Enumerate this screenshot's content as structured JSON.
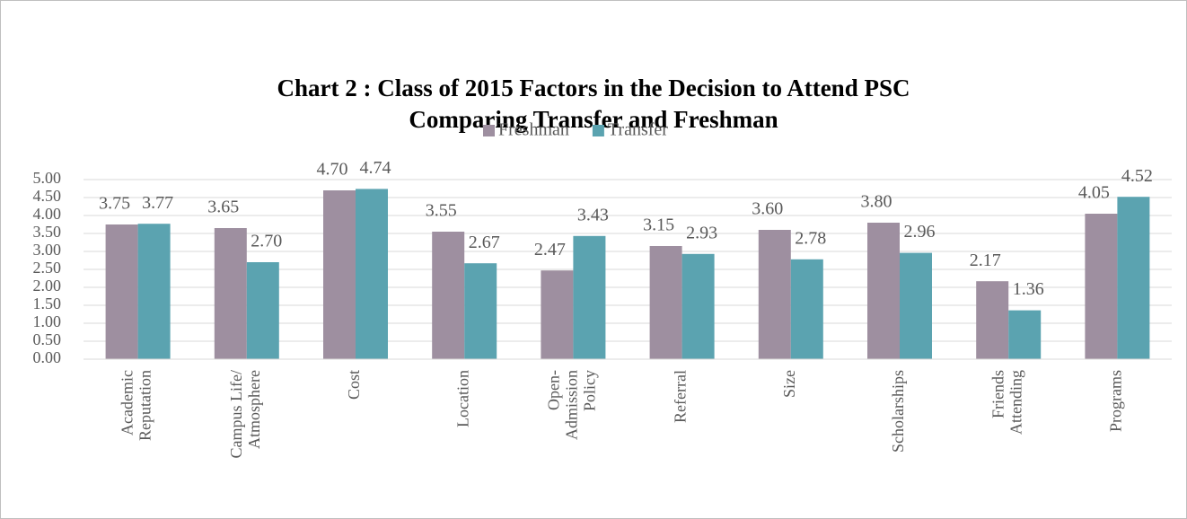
{
  "chart_data": {
    "type": "bar",
    "title": [
      "Chart 2 : Class of 2015 Factors in the Decision to Attend PSC",
      "Comparing Transfer and Freshman"
    ],
    "categories": [
      [
        "Academic",
        "Reputation"
      ],
      [
        "Campus Life/",
        "Atmosphere"
      ],
      [
        "Cost"
      ],
      [
        "Location"
      ],
      [
        "Open-",
        "Admission",
        "Policy"
      ],
      [
        "Referral"
      ],
      [
        "Size"
      ],
      [
        "Scholarships"
      ],
      [
        "Friends",
        "Attending"
      ],
      [
        "Programs"
      ]
    ],
    "series": [
      {
        "name": "Freshman",
        "color": "#9e8fa0",
        "values": [
          3.75,
          3.65,
          4.7,
          3.55,
          2.47,
          3.15,
          3.6,
          3.8,
          2.17,
          4.05
        ],
        "value_labels": [
          "3.75",
          "3.65",
          "4.70",
          "3.55",
          "2.47",
          "3.15",
          "3.60",
          "3.80",
          "2.17",
          "4.05"
        ]
      },
      {
        "name": "Transfer",
        "color": "#5ba3b0",
        "values": [
          3.77,
          2.7,
          4.74,
          2.67,
          3.43,
          2.93,
          2.78,
          2.96,
          1.36,
          4.52
        ],
        "value_labels": [
          "3.77",
          "2.70",
          "4.74",
          "2.67",
          "3.43",
          "2.93",
          "2.78",
          "2.96",
          "1.36",
          "4.52"
        ]
      }
    ],
    "ylim": [
      0,
      5
    ],
    "yticks": [
      {
        "value": 0,
        "label": "0.00"
      },
      {
        "value": 0.5,
        "label": "0.50"
      },
      {
        "value": 1,
        "label": "1.00"
      },
      {
        "value": 1.5,
        "label": "1.50"
      },
      {
        "value": 2,
        "label": "2.00"
      },
      {
        "value": 2.5,
        "label": "2.50"
      },
      {
        "value": 3,
        "label": "3.00"
      },
      {
        "value": 3.5,
        "label": "3.50"
      },
      {
        "value": 4,
        "label": "4.00"
      },
      {
        "value": 4.5,
        "label": "4.50"
      },
      {
        "value": 5,
        "label": "5.00"
      }
    ],
    "grid": true,
    "legend": "top"
  }
}
